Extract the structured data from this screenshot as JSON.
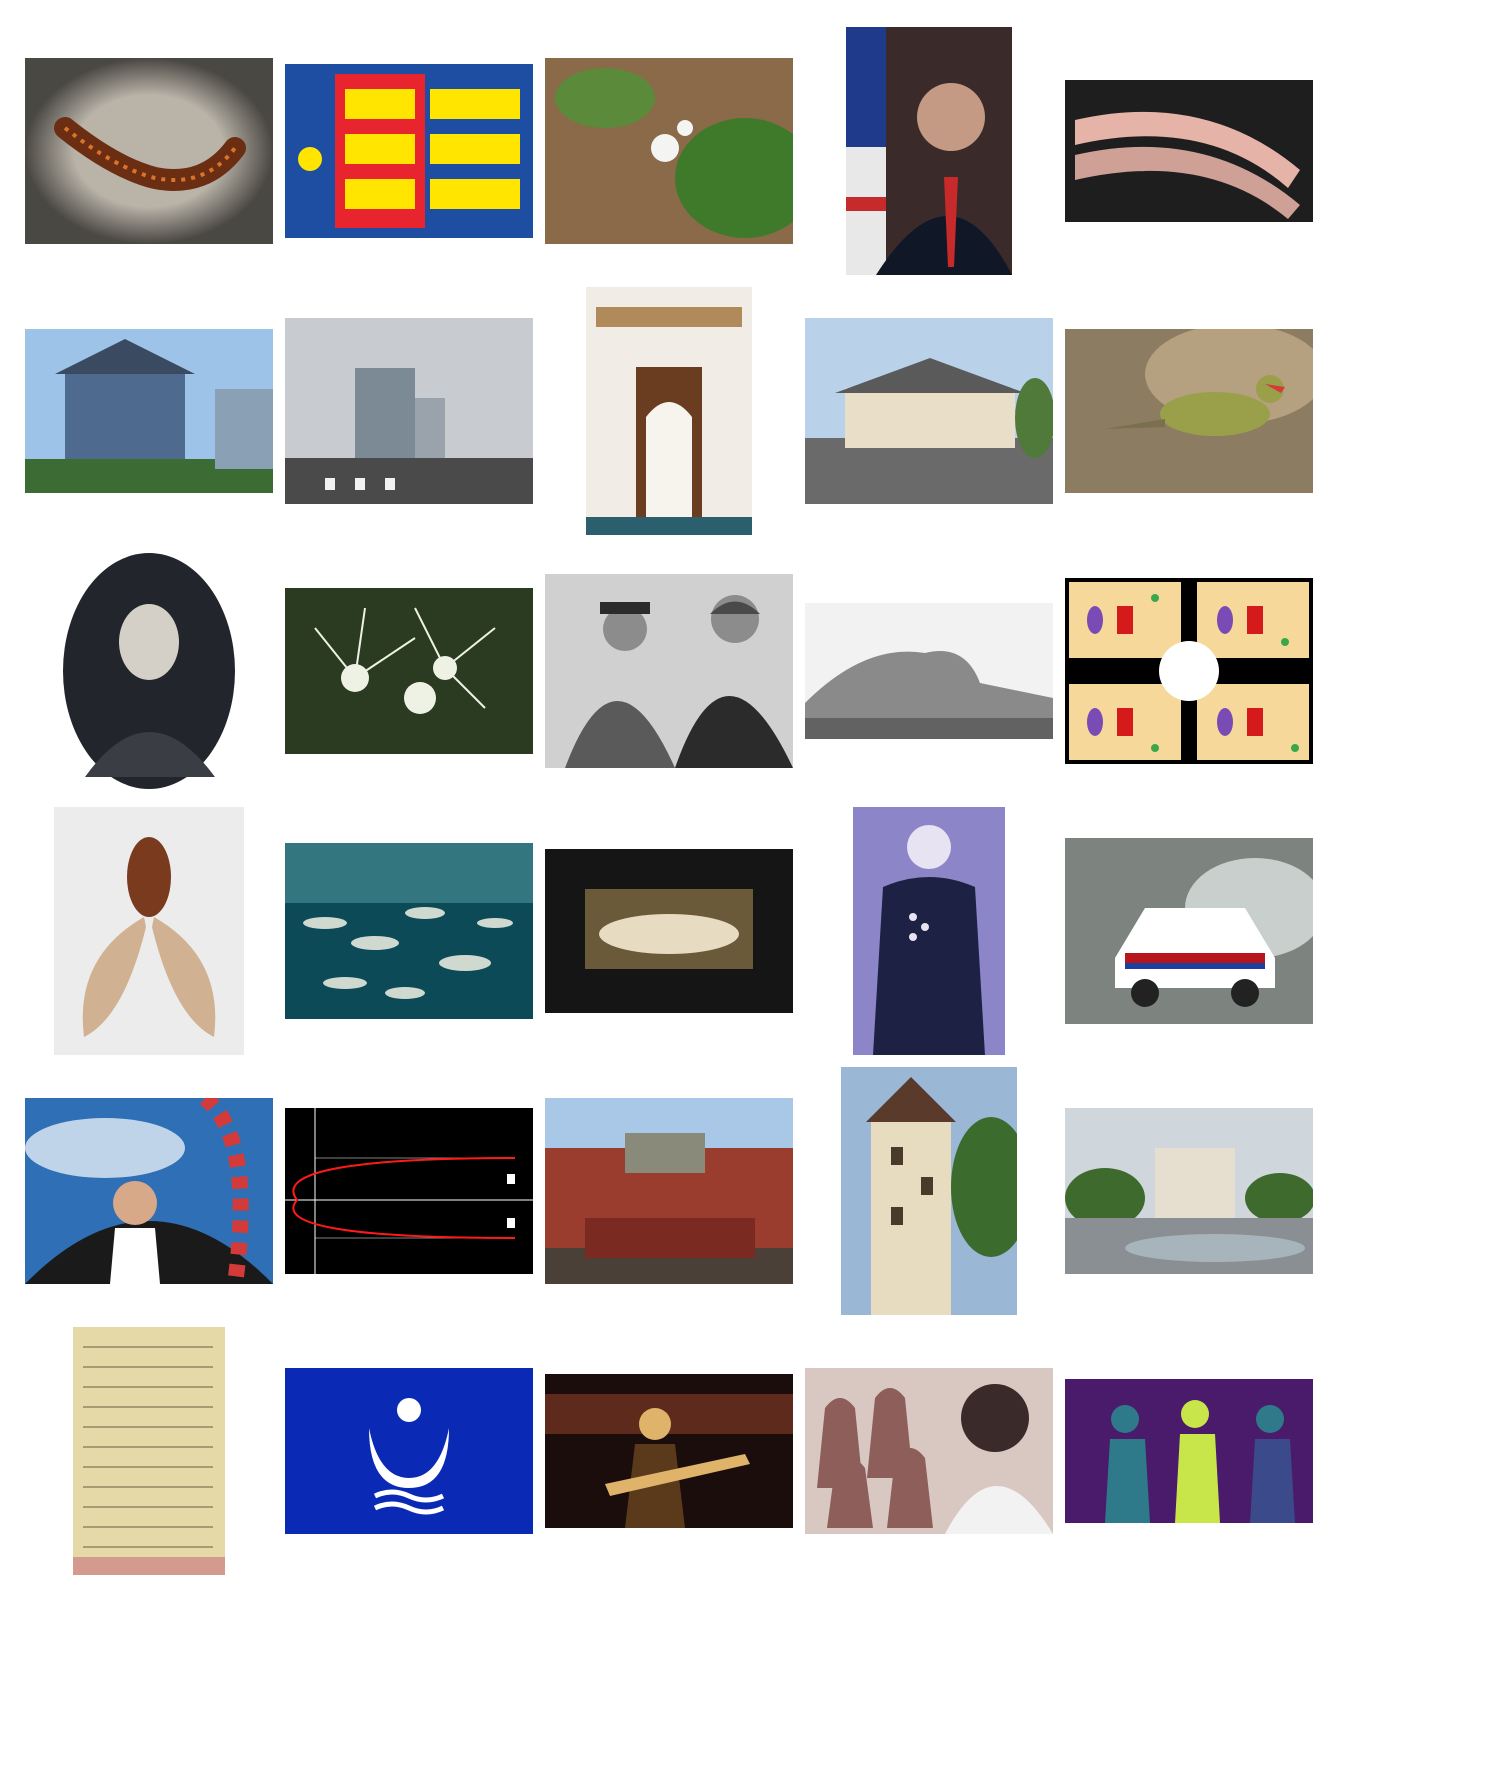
{
  "grid": {
    "columns": 5,
    "rows": 6,
    "tiles": [
      {
        "subject": "centipede",
        "palette": [
          "#b9b3a8",
          "#6b2e12",
          "#d9742a"
        ]
      },
      {
        "subject": "heraldic-flag-lions-ships",
        "palette": [
          "#e8242f",
          "#ffe500",
          "#1d4ea1"
        ]
      },
      {
        "subject": "white-flower-plant",
        "palette": [
          "#8a6a48",
          "#3f7a2a",
          "#f4f4f2"
        ]
      },
      {
        "subject": "official-portrait-flag",
        "palette": [
          "#101827",
          "#c72a2a",
          "#c59a84"
        ]
      },
      {
        "subject": "pink-toy-track",
        "palette": [
          "#1e1e1e",
          "#e6b3a8",
          "#cfa095"
        ]
      },
      {
        "subject": "blue-victorian-house",
        "palette": [
          "#9ec3e8",
          "#4f6a8f",
          "#3d6b34"
        ]
      },
      {
        "subject": "city-street-intersection",
        "palette": [
          "#c8ccd1",
          "#7c8a96",
          "#4a4a4a"
        ]
      },
      {
        "subject": "ornate-palace-courtyard",
        "palette": [
          "#f1ede6",
          "#6b3d20",
          "#2b5f6d"
        ]
      },
      {
        "subject": "two-story-building",
        "palette": [
          "#b9d2ea",
          "#e9dfc9",
          "#4f7a3a"
        ]
      },
      {
        "subject": "small-finch-bird",
        "palette": [
          "#8c7c62",
          "#9aa04a",
          "#d43b3b"
        ]
      },
      {
        "subject": "oval-vintage-portrait",
        "palette": [
          "#22252b",
          "#6e7077",
          "#d5d0c7"
        ]
      },
      {
        "subject": "white-spider-lily",
        "palette": [
          "#2a3b22",
          "#eef2e4",
          "#6c4a32"
        ]
      },
      {
        "subject": "military-medal-ceremony",
        "palette": [
          "#2b2b2b",
          "#8c8c8c",
          "#d0d0d0"
        ]
      },
      {
        "subject": "engraved-coastal-rock",
        "palette": [
          "#f2f2f2",
          "#8a8a8a",
          "#3a3a3a"
        ]
      },
      {
        "subject": "cell-transport-diagram",
        "palette": [
          "#000000",
          "#f6d89a",
          "#3aa84a"
        ]
      },
      {
        "subject": "fly-specimen-wings",
        "palette": [
          "#ececec",
          "#7a3a1e",
          "#c9a37a"
        ]
      },
      {
        "subject": "school-of-fish",
        "palette": [
          "#0d4a57",
          "#5aa2a7",
          "#cfd9d0"
        ]
      },
      {
        "subject": "reliquary-statue",
        "palette": [
          "#151515",
          "#6b5a3a",
          "#e7dcc2"
        ]
      },
      {
        "subject": "naval-officer-portrait",
        "palette": [
          "#8c86c8",
          "#1d2244",
          "#e8e3f2"
        ]
      },
      {
        "subject": "rally-car",
        "palette": [
          "#7d8480",
          "#ffffff",
          "#b8141c"
        ]
      },
      {
        "subject": "glider-pilot-cockpit",
        "palette": [
          "#2e6fb5",
          "#ffffff",
          "#d33b3b"
        ]
      },
      {
        "subject": "parabola-diagram",
        "palette": [
          "#000000",
          "#ff1a1a",
          "#ffffff"
        ]
      },
      {
        "subject": "museum-building",
        "palette": [
          "#a9c8e8",
          "#9a3d2e",
          "#4a4038"
        ]
      },
      {
        "subject": "castle-round-tower",
        "palette": [
          "#e7dcc0",
          "#3c6b2e",
          "#9ab7d6"
        ]
      },
      {
        "subject": "theatre-plaza-fountain",
        "palette": [
          "#cfd6dc",
          "#e6dfd0",
          "#3f6a2e"
        ]
      },
      {
        "subject": "handwritten-passport-document",
        "palette": [
          "#e6d9a8",
          "#6b5a3a",
          "#d59a8e"
        ]
      },
      {
        "subject": "blue-emblem-flag",
        "palette": [
          "#0a2ab5",
          "#ffffff",
          "#0a2ab5"
        ]
      },
      {
        "subject": "guitarist-concert",
        "palette": [
          "#1a0d0b",
          "#a1482e",
          "#e0b36a"
        ]
      },
      {
        "subject": "pottery-vases-worker",
        "palette": [
          "#8d5e5a",
          "#d9c8c2",
          "#3a2a2a"
        ]
      },
      {
        "subject": "band-performance-purple",
        "palette": [
          "#4a1a6b",
          "#c8e64a",
          "#2e7a8a"
        ]
      }
    ]
  }
}
